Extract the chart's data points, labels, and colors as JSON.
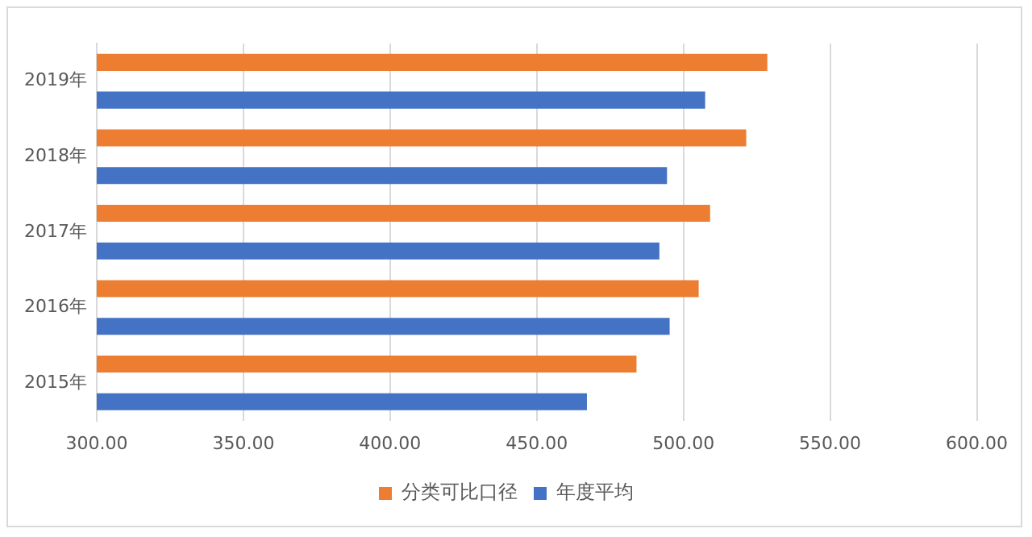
{
  "chart_data": {
    "type": "bar",
    "orientation": "horizontal",
    "categories": [
      "2019年",
      "2018年",
      "2017年",
      "2016年",
      "2015年"
    ],
    "series": [
      {
        "name": "分类可比口径",
        "color": "#ed7d31",
        "values": [
          528.6,
          521.4,
          509.1,
          505.2,
          484.0
        ]
      },
      {
        "name": "年度平均",
        "color": "#4472c4",
        "values": [
          507.4,
          494.4,
          491.8,
          495.3,
          467.1
        ]
      }
    ],
    "xlim": [
      300,
      600
    ],
    "xticks": [
      {
        "value": 300,
        "label": "300.00"
      },
      {
        "value": 350,
        "label": "350.00"
      },
      {
        "value": 400,
        "label": "400.00"
      },
      {
        "value": 450,
        "label": "450.00"
      },
      {
        "value": 500,
        "label": "500.00"
      },
      {
        "value": 550,
        "label": "550.00"
      },
      {
        "value": 600,
        "label": "600.00"
      }
    ],
    "grid": "x",
    "legend": "bottom"
  }
}
